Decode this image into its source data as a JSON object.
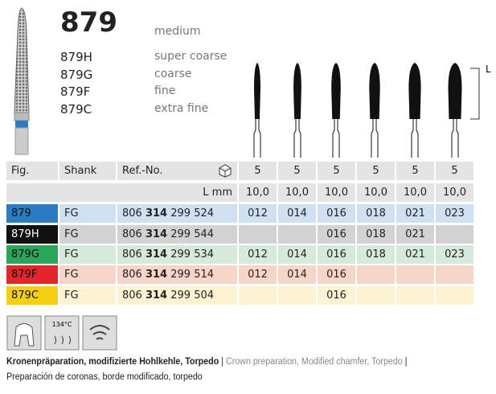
{
  "header": {
    "model": "879",
    "grit": "medium",
    "variants": [
      {
        "code": "879H",
        "grit": "super coarse"
      },
      {
        "code": "879G",
        "grit": "coarse"
      },
      {
        "code": "879F",
        "grit": "fine"
      },
      {
        "code": "879C",
        "grit": "extra fine"
      }
    ]
  },
  "diagram": {
    "length_marker": "L"
  },
  "table": {
    "columns": [
      "Fig.",
      "Shank",
      "Ref.-No."
    ],
    "pack_quantities": [
      "5",
      "5",
      "5",
      "5",
      "5",
      "5"
    ],
    "length_label": "L mm",
    "lengths": [
      "10,0",
      "10,0",
      "10,0",
      "10,0",
      "10,0",
      "10,0"
    ],
    "rows": [
      {
        "fig": "879",
        "color": "#2a7dc4",
        "text_color": "#111111",
        "background": "#cfe0f2",
        "shank": "FG",
        "ref": {
          "prefix": "806",
          "bold": "314",
          "suffix": "299 524"
        },
        "sizes": [
          "012",
          "014",
          "016",
          "018",
          "021",
          "023"
        ]
      },
      {
        "fig": "879H",
        "color": "#111111",
        "text_color": "#ffffff",
        "background": "#d2d2d2",
        "shank": "FG",
        "ref": {
          "prefix": "806",
          "bold": "314",
          "suffix": "299 544"
        },
        "sizes": [
          null,
          null,
          "016",
          "018",
          "021",
          null
        ]
      },
      {
        "fig": "879G",
        "color": "#2aa55a",
        "text_color": "#111111",
        "background": "#d5eadb",
        "shank": "FG",
        "ref": {
          "prefix": "806",
          "bold": "314",
          "suffix": "299 534"
        },
        "sizes": [
          "012",
          "014",
          "016",
          "018",
          "021",
          "023"
        ]
      },
      {
        "fig": "879F",
        "color": "#e3262a",
        "text_color": "#111111",
        "background": "#f7d6c9",
        "shank": "FG",
        "ref": {
          "prefix": "806",
          "bold": "314",
          "suffix": "299 514"
        },
        "sizes": [
          "012",
          "014",
          "016",
          null,
          null,
          null
        ]
      },
      {
        "fig": "879C",
        "color": "#f5cf14",
        "text_color": "#111111",
        "background": "#fdf3d2",
        "shank": "FG",
        "ref": {
          "prefix": "806",
          "bold": "314",
          "suffix": "299 504"
        },
        "sizes": [
          null,
          null,
          "016",
          null,
          null,
          null
        ]
      }
    ]
  },
  "icons": {
    "temperature": "134°C"
  },
  "footer": {
    "german": "Kronenpräparation, modifizierte Hohlkehle, Torpedo",
    "separator": "|",
    "english": "Crown preparation, Modified chamfer, Torpedo",
    "spanish": "Preparación de coronas, borde modificado, torpedo"
  }
}
